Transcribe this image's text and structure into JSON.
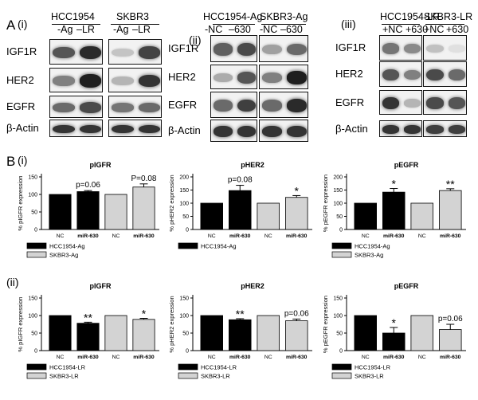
{
  "panel_a": {
    "letter": "A",
    "subpanels": [
      {
        "roman": "(i)",
        "cells": [
          {
            "name": "HCC1954",
            "lanes": [
              "-Ag",
              "–LR"
            ]
          },
          {
            "name": "SKBR3",
            "lanes": [
              "-Ag",
              "–LR"
            ]
          }
        ],
        "rows": [
          "IGF1R",
          "HER2",
          "EGFR",
          "β-Actin"
        ],
        "band_levels": [
          [
            [
              0.7,
              0.9
            ],
            [
              0.18,
              0.78
            ]
          ],
          [
            [
              0.5,
              0.95
            ],
            [
              0.25,
              0.85
            ]
          ],
          [
            [
              0.6,
              0.75
            ],
            [
              0.55,
              0.6
            ]
          ],
          [
            [
              0.85,
              0.85
            ],
            [
              0.85,
              0.85
            ]
          ]
        ]
      },
      {
        "roman": "(ii)",
        "cells": [
          {
            "name": "HCC1954-Ag",
            "lanes": [
              "-NC",
              "–630"
            ]
          },
          {
            "name": "SKBR3-Ag",
            "lanes": [
              "-NC",
              "–630"
            ]
          }
        ],
        "rows": [
          "IGF1R",
          "HER2",
          "EGFR",
          "β-Actin"
        ],
        "band_levels": [
          [
            [
              0.65,
              0.75
            ],
            [
              0.35,
              0.6
            ]
          ],
          [
            [
              0.3,
              0.7
            ],
            [
              0.5,
              0.95
            ]
          ],
          [
            [
              0.6,
              0.8
            ],
            [
              0.6,
              0.9
            ]
          ],
          [
            [
              0.85,
              0.85
            ],
            [
              0.85,
              0.85
            ]
          ]
        ]
      },
      {
        "roman": "(iii)",
        "cells": [
          {
            "name": "HCC1954-LR",
            "lanes": [
              "+NC",
              "+630"
            ]
          },
          {
            "name": "SKBR3-LR",
            "lanes": [
              "+NC",
              "+630"
            ]
          }
        ],
        "rows": [
          "IGF1R",
          "HER2",
          "EGFR",
          "β-Actin"
        ],
        "band_levels": [
          [
            [
              0.55,
              0.45
            ],
            [
              0.2,
              0.05
            ]
          ],
          [
            [
              0.7,
              0.5
            ],
            [
              0.75,
              0.6
            ]
          ],
          [
            [
              0.85,
              0.25
            ],
            [
              0.75,
              0.7
            ]
          ],
          [
            [
              0.85,
              0.85
            ],
            [
              0.8,
              0.8
            ]
          ]
        ]
      }
    ]
  },
  "panel_b": {
    "letter": "B",
    "row_labels": [
      "(i)",
      "(ii)"
    ]
  },
  "chart_data": [
    {
      "type": "bar",
      "title": "pIGFR",
      "ylabel": "% pIGFR expression",
      "ylim": [
        0,
        150
      ],
      "yticks": [
        0,
        50,
        100,
        150
      ],
      "categories": [
        "NC",
        "miR-630",
        "NC",
        "miR-630"
      ],
      "values": [
        100,
        108,
        100,
        121
      ],
      "errors": [
        0,
        3,
        0,
        9
      ],
      "annotations": [
        "",
        "p=0.06",
        "",
        "P=0.08"
      ],
      "colors": [
        "#000000",
        "#000000",
        "#d3d3d3",
        "#d3d3d3"
      ],
      "legend": [
        "HCC1954-Ag",
        "SKBR3-Ag"
      ]
    },
    {
      "type": "bar",
      "title": "pHER2",
      "ylabel": "% pHER2 expression",
      "ylim": [
        0,
        200
      ],
      "yticks": [
        0,
        50,
        100,
        150,
        200
      ],
      "categories": [
        "NC",
        "miR-630",
        "NC",
        "miR-630"
      ],
      "values": [
        100,
        148,
        100,
        122
      ],
      "errors": [
        0,
        20,
        0,
        7
      ],
      "annotations": [
        "",
        "p=0.08",
        "",
        "*"
      ],
      "colors": [
        "#000000",
        "#000000",
        "#d3d3d3",
        "#d3d3d3"
      ],
      "legend": [
        "HCC1954-Ag"
      ]
    },
    {
      "type": "bar",
      "title": "pEGFR",
      "ylabel": "% pEGFR expression",
      "ylim": [
        0,
        200
      ],
      "yticks": [
        0,
        50,
        100,
        150,
        200
      ],
      "categories": [
        "NC",
        "miR-630",
        "NC",
        "miR-630"
      ],
      "values": [
        100,
        142,
        100,
        148
      ],
      "errors": [
        0,
        14,
        0,
        7
      ],
      "annotations": [
        "",
        "*",
        "",
        "**"
      ],
      "colors": [
        "#000000",
        "#000000",
        "#d3d3d3",
        "#d3d3d3"
      ],
      "legend": [
        "HCC1954-Ag",
        "SKBR3-Ag"
      ]
    },
    {
      "type": "bar",
      "title": "pIGFR",
      "ylabel": "% pIGFR expression",
      "ylim": [
        0,
        150
      ],
      "yticks": [
        0,
        50,
        100,
        150
      ],
      "categories": [
        "NC",
        "miR-630",
        "NC",
        "miR-630"
      ],
      "values": [
        100,
        78,
        100,
        89
      ],
      "errors": [
        0,
        3,
        0,
        3
      ],
      "annotations": [
        "",
        "**",
        "",
        "*"
      ],
      "colors": [
        "#000000",
        "#000000",
        "#d3d3d3",
        "#d3d3d3"
      ],
      "legend": [
        "HCC1954-LR",
        "SKBR3-LR"
      ]
    },
    {
      "type": "bar",
      "title": "pHER2",
      "ylabel": "% pHER2 expression",
      "ylim": [
        0,
        150
      ],
      "yticks": [
        0,
        50,
        100,
        150
      ],
      "categories": [
        "NC",
        "miR-630",
        "NC",
        "miR-630"
      ],
      "values": [
        100,
        88,
        100,
        85
      ],
      "errors": [
        0,
        3,
        0,
        5
      ],
      "annotations": [
        "",
        "**",
        "",
        "p=0.06"
      ],
      "colors": [
        "#000000",
        "#000000",
        "#d3d3d3",
        "#d3d3d3"
      ],
      "legend": [
        "HCC1954-LR",
        "SKBR3-LR"
      ]
    },
    {
      "type": "bar",
      "title": "pEGFR",
      "ylabel": "% pEGFR expression",
      "ylim": [
        0,
        150
      ],
      "yticks": [
        0,
        50,
        100,
        150
      ],
      "categories": [
        "NC",
        "miR-630",
        "NC",
        "miR-630"
      ],
      "values": [
        100,
        50,
        100,
        60
      ],
      "errors": [
        0,
        16,
        0,
        15
      ],
      "annotations": [
        "",
        "*",
        "",
        "p=0.06"
      ],
      "colors": [
        "#000000",
        "#000000",
        "#d3d3d3",
        "#d3d3d3"
      ],
      "legend": [
        "HCC1954-LR",
        "SKBR3-LR"
      ]
    }
  ]
}
